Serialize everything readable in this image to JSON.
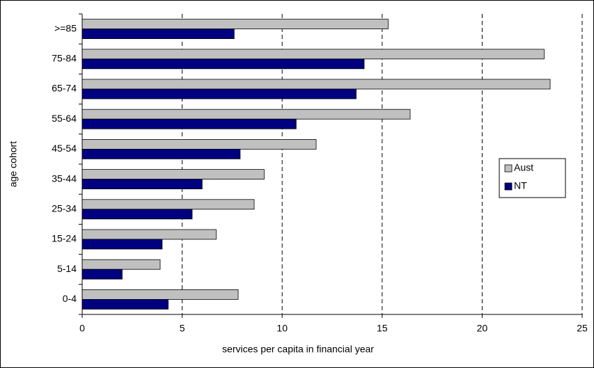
{
  "chart_data": {
    "type": "hbar",
    "x_label": "services per capita in financial year",
    "y_label": "age cohort",
    "categories": [
      ">=85",
      "75-84",
      "65-74",
      "55-64",
      "45-54",
      "35-44",
      "25-34",
      "15-24",
      "5-14",
      "0-4"
    ],
    "series": [
      {
        "name": "Aust",
        "color": "#c0c0c0",
        "values": [
          15.3,
          23.1,
          23.4,
          16.4,
          11.7,
          9.1,
          8.6,
          6.7,
          3.9,
          7.8
        ]
      },
      {
        "name": "NT",
        "color": "#000080",
        "values": [
          7.6,
          14.1,
          13.7,
          10.7,
          7.9,
          6.0,
          5.5,
          4.0,
          2.0,
          4.3
        ]
      }
    ],
    "xlim": [
      0,
      25
    ],
    "xticks": [
      0,
      5,
      10,
      15,
      20,
      25
    ],
    "grid": true,
    "legend": "right"
  }
}
